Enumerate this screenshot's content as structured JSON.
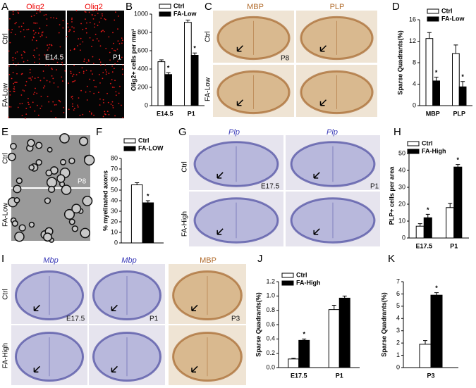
{
  "panels": {
    "A": {
      "label": "A",
      "columns": [
        "Olig2",
        "Olig2"
      ],
      "rows": [
        "Ctrl",
        "FA-Low"
      ],
      "stages": [
        "E14.5",
        "P1"
      ]
    },
    "C": {
      "label": "C",
      "columns": [
        "MBP",
        "PLP"
      ],
      "rows": [
        "Ctrl",
        "FA-Low"
      ],
      "stages": [
        "P8"
      ]
    },
    "E": {
      "label": "E",
      "rows": [
        "Ctrl",
        "FA-Low"
      ],
      "stages": [
        "P8"
      ]
    },
    "G": {
      "label": "G",
      "columns": [
        "Plp",
        "Plp"
      ],
      "rows": [
        "Ctrl",
        "FA-High"
      ],
      "stages": [
        "E17.5",
        "P1"
      ]
    },
    "I": {
      "label": "I",
      "columns": [
        "Mbp",
        "Mbp",
        "MBP"
      ],
      "rows": [
        "Ctrl",
        "FA-High"
      ],
      "stages": [
        "E17.5",
        "P1",
        "P3"
      ]
    }
  },
  "chart_data": [
    {
      "type": "bar",
      "panel_label": "B",
      "y_label": "Olig2+ cells per mm²",
      "categories": [
        "E14.5",
        "P1"
      ],
      "series": [
        {
          "name": "Ctrl",
          "color": "#ffffff",
          "values": [
            480,
            910
          ],
          "errors": [
            20,
            25
          ]
        },
        {
          "name": "FA-Low",
          "color": "#000000",
          "values": [
            340,
            550
          ],
          "errors": [
            20,
            25
          ],
          "stars": [
            "*",
            "*"
          ]
        }
      ],
      "ylim": [
        0,
        1000
      ],
      "yticks": [
        0,
        200,
        400,
        600,
        800,
        1000
      ]
    },
    {
      "type": "bar",
      "panel_label": "D",
      "y_label": "Sparse Quadrants(%)",
      "categories": [
        "MBP",
        "PLP"
      ],
      "series": [
        {
          "name": "Ctrl",
          "color": "#ffffff",
          "values": [
            12.5,
            9.7
          ],
          "errors": [
            1.1,
            1.6
          ]
        },
        {
          "name": "FA-Low",
          "color": "#000000",
          "values": [
            4.6,
            3.5
          ],
          "errors": [
            0.7,
            1.0
          ],
          "stars": [
            "*",
            "*"
          ]
        }
      ],
      "ylim": [
        0,
        16
      ],
      "yticks": [
        0,
        4,
        8,
        12,
        16
      ]
    },
    {
      "type": "bar",
      "panel_label": "F",
      "y_label": "% myelinated axons",
      "categories": [
        null
      ],
      "series": [
        {
          "name": "Ctrl",
          "color": "#ffffff",
          "values": [
            55
          ],
          "errors": [
            2
          ]
        },
        {
          "name": "FA-LOW",
          "color": "#000000",
          "values": [
            38
          ],
          "errors": [
            2
          ],
          "stars": [
            "*"
          ]
        }
      ],
      "ylim": [
        0,
        80
      ],
      "yticks": [
        0,
        10,
        20,
        30,
        40,
        50,
        60,
        70,
        80
      ]
    },
    {
      "type": "bar",
      "panel_label": "H",
      "y_label": "PLP+ cells per area",
      "categories": [
        "E17.5",
        "P1"
      ],
      "series": [
        {
          "name": "Ctrl",
          "color": "#ffffff",
          "values": [
            7,
            18
          ],
          "errors": [
            1.5,
            2.5
          ]
        },
        {
          "name": "FA-High",
          "color": "#000000",
          "values": [
            12,
            42
          ],
          "errors": [
            2,
            1.5
          ],
          "stars": [
            "*",
            "*"
          ]
        }
      ],
      "ylim": [
        0,
        50
      ],
      "yticks": [
        0,
        10,
        20,
        30,
        40,
        50
      ]
    },
    {
      "type": "bar",
      "panel_label": "J",
      "y_label": "Sparse Quadrants(%)",
      "categories": [
        "E17.5",
        "P1"
      ],
      "series": [
        {
          "name": "Ctrl",
          "color": "#ffffff",
          "values": [
            0.12,
            0.81
          ],
          "errors": [
            0.01,
            0.06
          ]
        },
        {
          "name": "FA-High",
          "color": "#000000",
          "values": [
            0.38,
            0.97
          ],
          "errors": [
            0.02,
            0.03
          ],
          "stars": [
            "*",
            null
          ]
        }
      ],
      "ylim": [
        0,
        1.2
      ],
      "yticks": [
        {
          "value": 0,
          "label": "0.0"
        },
        0.2,
        0.4,
        0.6,
        0.8,
        {
          "value": 1,
          "label": "1.0"
        },
        1.2
      ]
    },
    {
      "type": "bar",
      "panel_label": "K",
      "y_label": "Sparse Quadrants(%)",
      "categories": [
        "P3"
      ],
      "series": [
        {
          "color": "#ffffff",
          "values": [
            1.9
          ],
          "errors": [
            0.3
          ]
        },
        {
          "color": "#000000",
          "values": [
            5.9
          ],
          "errors": [
            0.2
          ],
          "stars": [
            "*"
          ]
        }
      ],
      "ylim": [
        0,
        7
      ],
      "yticks": [
        0,
        1,
        2,
        3,
        4,
        5,
        6,
        7
      ]
    }
  ]
}
